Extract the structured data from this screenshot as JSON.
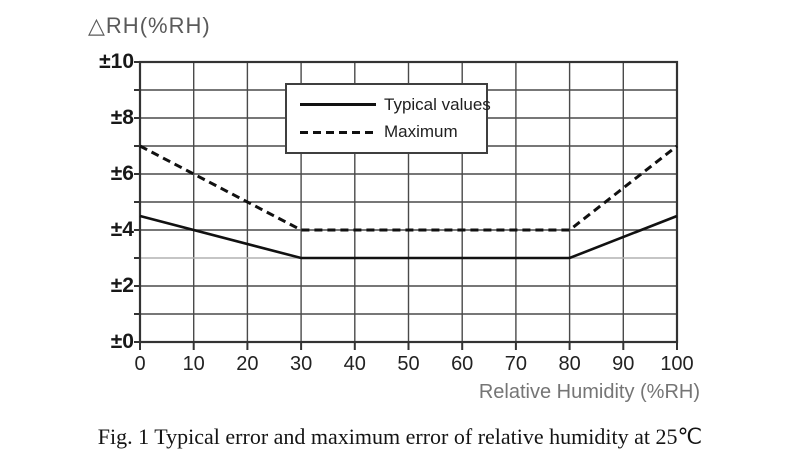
{
  "chart_data": {
    "type": "line",
    "title": "",
    "ylabel": "△RH(%RH)",
    "xlabel": "Relative Humidity (%RH)",
    "xlim": [
      0,
      100
    ],
    "ylim": [
      0,
      10
    ],
    "grid": true,
    "x_gridline_step": 10,
    "y_gridline_step": 1,
    "light_gridline_y": 3,
    "x": [
      0,
      30,
      80,
      100
    ],
    "series": [
      {
        "name": "Typical values",
        "style": "solid",
        "values": [
          4.5,
          3,
          3,
          4.5
        ]
      },
      {
        "name": "Maximum",
        "style": "dashed",
        "values": [
          7,
          4,
          4,
          7
        ]
      }
    ],
    "legend": {
      "position": "inside-top-center",
      "entries": [
        "Typical values",
        "Maximum"
      ]
    },
    "y_tick_labels": [
      "±10",
      "±8",
      "±6",
      "±4",
      "±2",
      "±0"
    ],
    "y_tick_values": [
      10,
      8,
      6,
      4,
      2,
      0
    ],
    "x_tick_labels": [
      "0",
      "10",
      "20",
      "30",
      "40",
      "50",
      "60",
      "70",
      "80",
      "90",
      "100"
    ],
    "x_tick_values": [
      0,
      10,
      20,
      30,
      40,
      50,
      60,
      70,
      80,
      90,
      100
    ]
  },
  "caption": {
    "text": "Fig. 1 Typical error and maximum error of relative humidity at 25℃"
  },
  "colors": {
    "background": "#ffffff",
    "frame": "#333333",
    "grid": "#4a4a4a",
    "grid_light": "#b2b2b2",
    "tick": "#333333",
    "curve": "#111111",
    "muted_text": "#5a5a5a"
  }
}
